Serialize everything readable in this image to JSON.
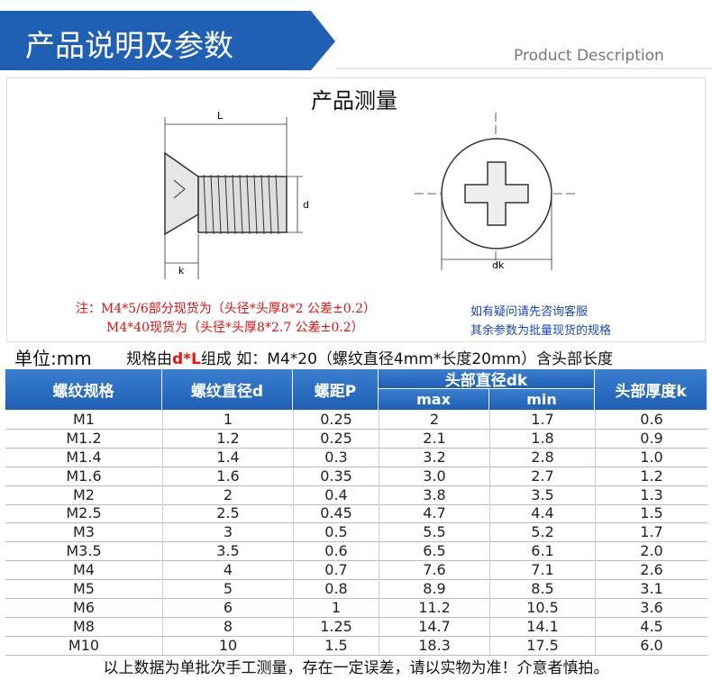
{
  "header": {
    "title": "产品说明及参数",
    "subtitle": "Product Description"
  },
  "diagram": {
    "title": "产品测量",
    "labels": {
      "length": "L",
      "diameter": "d",
      "head_thickness": "k",
      "head_diameter": "dk"
    }
  },
  "notes": {
    "red": [
      "注：M4*5/6部分现货为（头径*头厚8*2 公差±0.2）",
      "M4*40现货为（头径*头厚8*2.7 公差±0.2）"
    ],
    "blue": [
      "如有疑问请先咨询客服",
      "其余参数为批量现货的规格"
    ]
  },
  "unit": {
    "label": "单位:mm",
    "spec_prefix": "规格由",
    "spec_highlight": "d*L",
    "spec_suffix": "组成  如：M4*20（螺纹直径4mm*长度20mm）含头部长度"
  },
  "table": {
    "headers": [
      "螺纹规格",
      "螺纹直径d",
      "螺距P",
      "头部直径dk",
      "头部厚度k"
    ],
    "subheaders": [
      "max",
      "min"
    ],
    "rows": [
      [
        "M1",
        "1",
        "0.25",
        "2",
        "1.7",
        "0.6"
      ],
      [
        "M1.2",
        "1.2",
        "0.25",
        "2.1",
        "1.8",
        "0.9"
      ],
      [
        "M1.4",
        "1.4",
        "0.3",
        "3.2",
        "2.8",
        "1.0"
      ],
      [
        "M1.6",
        "1.6",
        "0.35",
        "3.0",
        "2.7",
        "1.2"
      ],
      [
        "M2",
        "2",
        "0.4",
        "3.8",
        "3.5",
        "1.3"
      ],
      [
        "M2.5",
        "2.5",
        "0.45",
        "4.7",
        "4.4",
        "1.5"
      ],
      [
        "M3",
        "3",
        "0.5",
        "5.5",
        "5.2",
        "1.7"
      ],
      [
        "M3.5",
        "3.5",
        "0.6",
        "6.5",
        "6.1",
        "2.0"
      ],
      [
        "M4",
        "4",
        "0.7",
        "7.6",
        "7.1",
        "2.6"
      ],
      [
        "M5",
        "5",
        "0.8",
        "8.9",
        "8.5",
        "3.1"
      ],
      [
        "M6",
        "6",
        "1",
        "11.2",
        "10.5",
        "3.6"
      ],
      [
        "M8",
        "8",
        "1.25",
        "14.7",
        "14.1",
        "4.5"
      ],
      [
        "M10",
        "10",
        "1.5",
        "18.3",
        "17.5",
        "6.0"
      ]
    ]
  },
  "footer": "以上数据为单批次手工测量，存在一定误差，请以实物为准！介意者慎拍。"
}
